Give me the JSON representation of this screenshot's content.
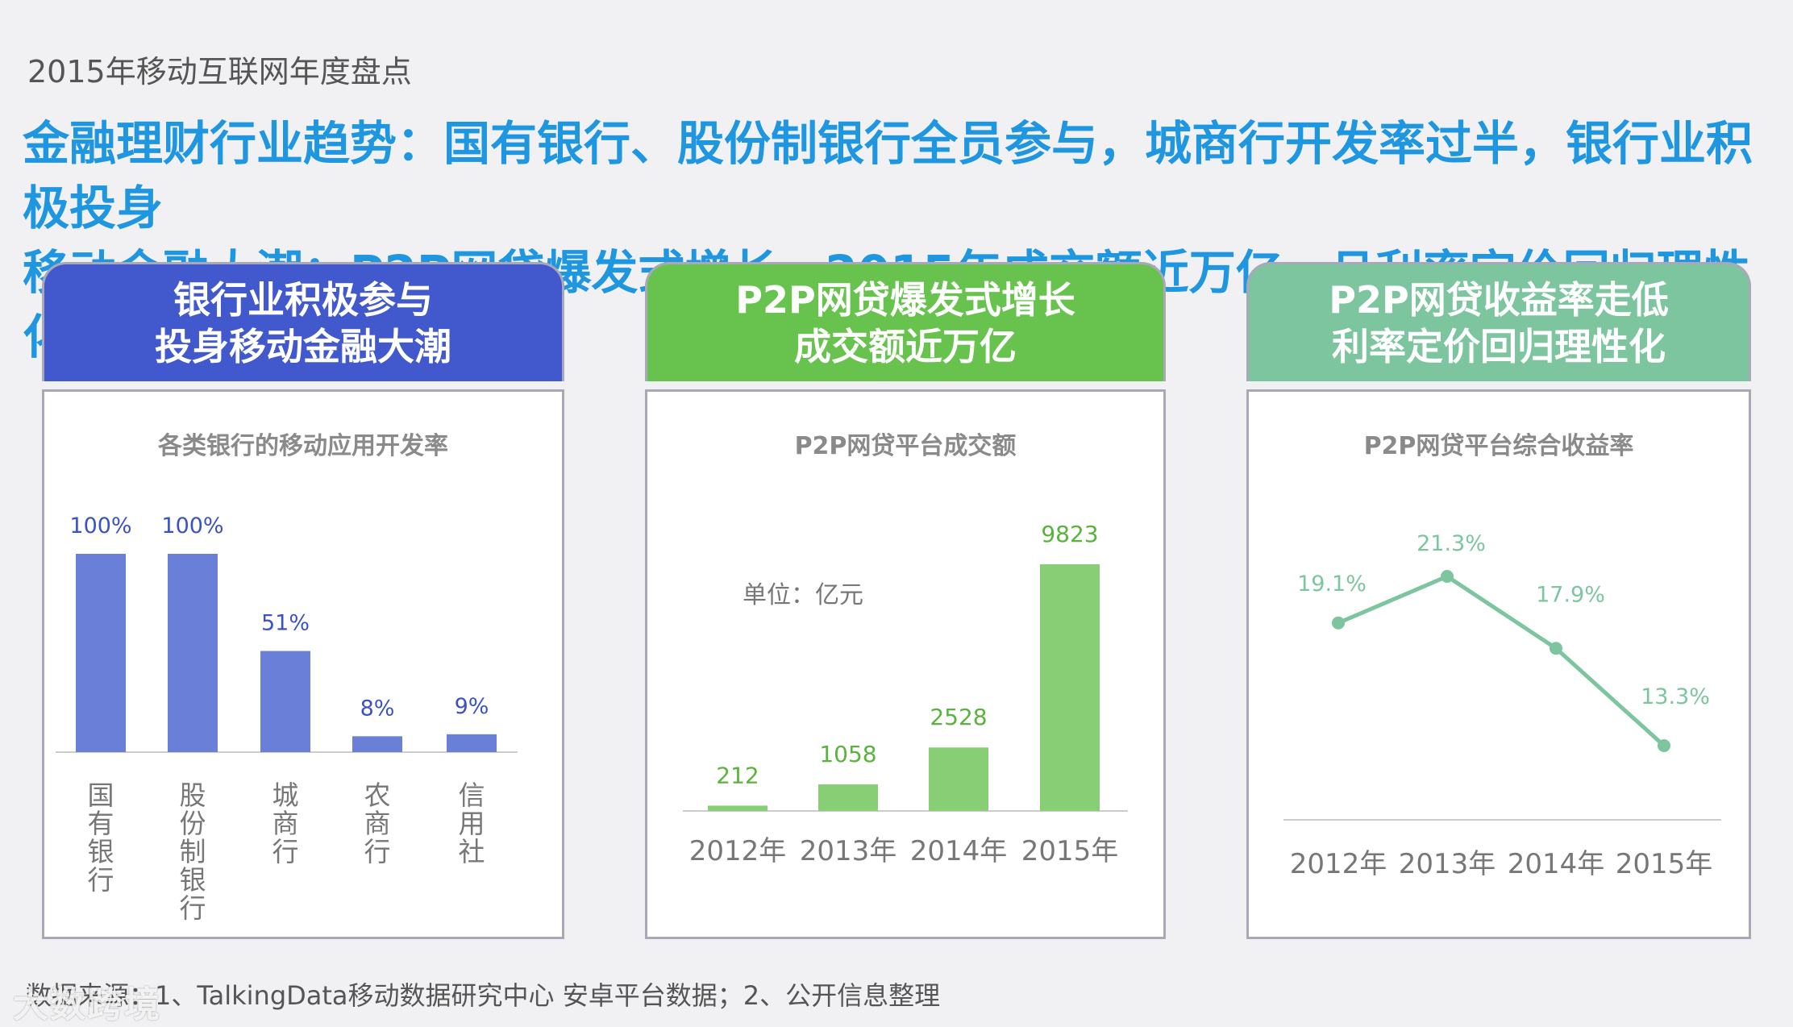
{
  "header": "2015年移动互联网年度盘点",
  "headline": {
    "line1": "金融理财行业趋势：国有银行、股份制银行全员参与，城商行开发率过半，银行业积极投身",
    "line2": "移动金融大潮；P2P网贷爆发式增长，2015年成交额近万亿，且利率定价回归理性化"
  },
  "cards": [
    {
      "title_line1": "银行业积极参与",
      "title_line2": "投身移动金融大潮",
      "color": "#4159cd"
    },
    {
      "title_line1": "P2P网贷爆发式增长",
      "title_line2": "成交额近万亿",
      "color": "#67c34e"
    },
    {
      "title_line1": "P2P网贷收益率走低",
      "title_line2": "利率定价回归理性化",
      "color": "#7cc59f"
    }
  ],
  "chart_data": [
    {
      "type": "bar",
      "title": "各类银行的移动应用开发率",
      "categories": [
        "国有银行",
        "股份制银行",
        "城商行",
        "农商行",
        "信用社"
      ],
      "values": [
        100,
        100,
        51,
        8,
        9
      ],
      "labels": [
        "100%",
        "100%",
        "51%",
        "8%",
        "9%"
      ],
      "ylim": [
        0,
        100
      ],
      "color": "#6a7fd8",
      "label_color": "#3a52c4"
    },
    {
      "type": "bar",
      "title": "P2P网贷平台成交额",
      "unit": "单位：亿元",
      "categories": [
        "2012年",
        "2013年",
        "2014年",
        "2015年"
      ],
      "values": [
        212,
        1058,
        2528,
        9823
      ],
      "labels": [
        "212",
        "1058",
        "2528",
        "9823"
      ],
      "ylim": [
        0,
        9823
      ],
      "color": "#88ce74",
      "label_color": "#59b33c"
    },
    {
      "type": "line",
      "title": "P2P网贷平台综合收益率",
      "categories": [
        "2012年",
        "2013年",
        "2014年",
        "2015年"
      ],
      "values": [
        19.1,
        21.3,
        17.9,
        13.3
      ],
      "labels": [
        "19.1%",
        "21.3%",
        "17.9%",
        "13.3%"
      ],
      "ylim": [
        13.3,
        21.3
      ],
      "color": "#7cc59f"
    }
  ],
  "footer": "数据来源：1、TalkingData移动数据研究中心 安卓平台数据；2、公开信息整理",
  "watermark": "大数跨境"
}
